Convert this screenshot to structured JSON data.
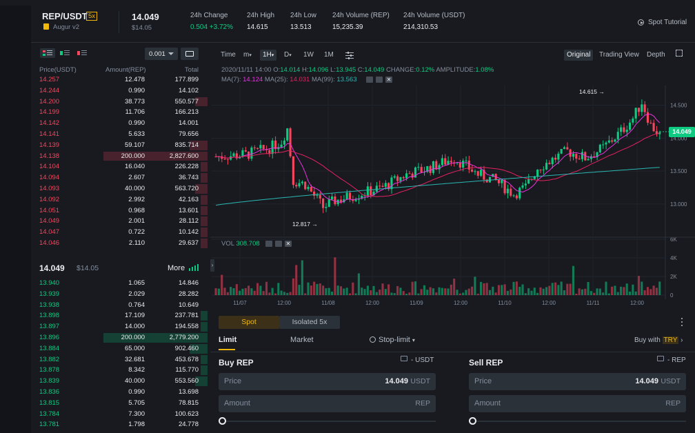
{
  "header": {
    "pair": "REP/USDT",
    "leverage": "5x",
    "token_name": "Augur v2",
    "last_price": "14.049",
    "last_price_usd": "$14.05",
    "stats": [
      {
        "label": "24h Change",
        "value": "0.504 +3.72%",
        "color": "#0ecb81"
      },
      {
        "label": "24h High",
        "value": "14.615",
        "color": "#eaecef"
      },
      {
        "label": "24h Low",
        "value": "13.513",
        "color": "#eaecef"
      },
      {
        "label": "24h Volume (REP)",
        "value": "15,235.39",
        "color": "#eaecef"
      },
      {
        "label": "24h Volume (USDT)",
        "value": "214,310.53",
        "color": "#eaecef"
      }
    ],
    "tutorial": "Spot Tutorial"
  },
  "orderbook": {
    "precision": "0.001",
    "columns": [
      "Price(USDT)",
      "Amount(REP)",
      "Total"
    ],
    "asks": [
      {
        "price": "14.257",
        "amount": "12.478",
        "total": "177.899",
        "depth": 0
      },
      {
        "price": "14.244",
        "amount": "0.990",
        "total": "14.102",
        "depth": 0
      },
      {
        "price": "14.200",
        "amount": "38.773",
        "total": "550.577",
        "depth": 0.07
      },
      {
        "price": "14.199",
        "amount": "11.706",
        "total": "166.213",
        "depth": 0
      },
      {
        "price": "14.142",
        "amount": "0.990",
        "total": "14.001",
        "depth": 0
      },
      {
        "price": "14.141",
        "amount": "5.633",
        "total": "79.656",
        "depth": 0
      },
      {
        "price": "14.139",
        "amount": "59.107",
        "total": "835.714",
        "depth": 0.1
      },
      {
        "price": "14.138",
        "amount": "200.000",
        "total": "2,827.600",
        "depth": 0.59
      },
      {
        "price": "14.104",
        "amount": "16.040",
        "total": "226.228",
        "depth": 0.04
      },
      {
        "price": "14.094",
        "amount": "2.607",
        "total": "36.743",
        "depth": 0.04
      },
      {
        "price": "14.093",
        "amount": "40.000",
        "total": "563.720",
        "depth": 0.07
      },
      {
        "price": "14.092",
        "amount": "2.992",
        "total": "42.163",
        "depth": 0.04
      },
      {
        "price": "14.051",
        "amount": "0.968",
        "total": "13.601",
        "depth": 0.04
      },
      {
        "price": "14.049",
        "amount": "2.001",
        "total": "28.112",
        "depth": 0.04
      },
      {
        "price": "14.047",
        "amount": "0.722",
        "total": "10.142",
        "depth": 0.04
      },
      {
        "price": "14.046",
        "amount": "2.110",
        "total": "29.637",
        "depth": 0.04
      }
    ],
    "mid_price": "14.049",
    "mid_usd": "$14.05",
    "more": "More",
    "bids": [
      {
        "price": "13.940",
        "amount": "1.065",
        "total": "14.846",
        "depth": 0
      },
      {
        "price": "13.939",
        "amount": "2.029",
        "total": "28.282",
        "depth": 0
      },
      {
        "price": "13.938",
        "amount": "0.764",
        "total": "10.649",
        "depth": 0
      },
      {
        "price": "13.898",
        "amount": "17.109",
        "total": "237.781",
        "depth": 0.04
      },
      {
        "price": "13.897",
        "amount": "14.000",
        "total": "194.558",
        "depth": 0.04
      },
      {
        "price": "13.896",
        "amount": "200.000",
        "total": "2,779.200",
        "depth": 0.59
      },
      {
        "price": "13.884",
        "amount": "65.000",
        "total": "902.460",
        "depth": 0.1
      },
      {
        "price": "13.882",
        "amount": "32.681",
        "total": "453.678",
        "depth": 0.04
      },
      {
        "price": "13.878",
        "amount": "8.342",
        "total": "115.770",
        "depth": 0.04
      },
      {
        "price": "13.839",
        "amount": "40.000",
        "total": "553.560",
        "depth": 0.07
      },
      {
        "price": "13.836",
        "amount": "0.990",
        "total": "13.698",
        "depth": 0
      },
      {
        "price": "13.815",
        "amount": "5.705",
        "total": "78.815",
        "depth": 0
      },
      {
        "price": "13.784",
        "amount": "7.300",
        "total": "100.623",
        "depth": 0
      },
      {
        "price": "13.781",
        "amount": "1.798",
        "total": "24.778",
        "depth": 0
      }
    ]
  },
  "chart_toolbar": {
    "time": "Time",
    "minute": "m",
    "active": "1H",
    "day": "D",
    "week": "1W",
    "month": "1M",
    "views": [
      "Original",
      "Trading View",
      "Depth"
    ]
  },
  "chart_info": {
    "date": "2020/11/11 14:00",
    "o_label": "O:",
    "o": "14.014",
    "h_label": "H:",
    "h": "14.096",
    "l_label": "L:",
    "l": "13.945",
    "c_label": "C:",
    "c": "14.049",
    "change_label": "CHANGE:",
    "change": "0.12%",
    "amp_label": "AMPLITUDE:",
    "amp": "1.08%",
    "ma7_label": "MA(7):",
    "ma7": "14.124",
    "ma25_label": "MA(25):",
    "ma25": "14.031",
    "ma99_label": "MA(99):",
    "ma99": "13.563",
    "vol_label": "VOL",
    "vol": "308.708",
    "high_marker": "14.615",
    "low_marker": "12.817",
    "current_tag": "14.049"
  },
  "chart_data": {
    "type": "candlestick",
    "price_ticks": [
      "14.500",
      "14.000",
      "13.500",
      "13.000"
    ],
    "volume_ticks": [
      "6K",
      "4K",
      "2K",
      "0"
    ],
    "x_ticks": [
      "11/07",
      "12:00",
      "11/08",
      "12:00",
      "11/09",
      "12:00",
      "11/10",
      "12:00",
      "11/11",
      "12:00"
    ],
    "ylim": [
      12.6,
      14.8
    ],
    "colors": {
      "up": "#0ecb81",
      "down": "#f6465d",
      "ma7": "#e932e0",
      "ma25": "#e82160",
      "ma99": "#2bb9b3"
    }
  },
  "trade": {
    "tabs": [
      "Spot",
      "Isolated"
    ],
    "isolated_lev": "5x",
    "order_types": [
      "Limit",
      "Market",
      "Stop-limit"
    ],
    "buy_with": "Buy with",
    "buy_with_cur": "TRY",
    "buy": {
      "title": "Buy REP",
      "wallet": "- USDT",
      "price_label": "Price",
      "price": "14.049",
      "price_unit": "USDT",
      "amount_label": "Amount",
      "amount_unit": "REP"
    },
    "sell": {
      "title": "Sell REP",
      "wallet": "- REP",
      "price_label": "Price",
      "price": "14.049",
      "price_unit": "USDT",
      "amount_label": "Amount",
      "amount_unit": "REP"
    }
  }
}
